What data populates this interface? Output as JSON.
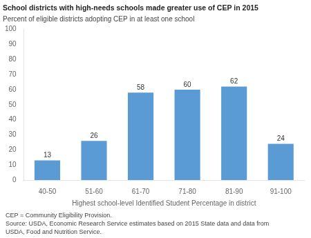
{
  "chart_data": {
    "type": "bar",
    "title": "School districts with high-needs schools made greater use of CEP in 2015",
    "ylabel": "Percent of eligible districts adopting CEP in at least one school",
    "xlabel": "Highest school-level Identified Student Percentage in district",
    "categories": [
      "40-50",
      "51-60",
      "61-70",
      "71-80",
      "81-90",
      "91-100"
    ],
    "values": [
      13,
      26,
      58,
      60,
      62,
      24
    ],
    "color": "#5b9bd5",
    "ylim": [
      0,
      100
    ],
    "yticks": [
      0,
      10,
      20,
      30,
      40,
      50,
      60,
      70,
      80,
      90,
      100
    ],
    "grid": false,
    "data_labels": true,
    "annotations": [
      "CEP = Community Eligibility Provision.",
      "Source: USDA, Economic Research Service estimates based on 2015 State data and data from",
      "USDA, Food and Nutrition Service."
    ]
  }
}
